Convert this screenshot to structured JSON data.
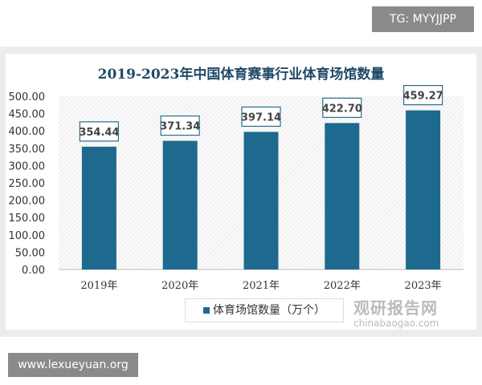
{
  "overlay": {
    "tg_label": "TG: MYYJJPP",
    "site_label": "www.lexueyuan.org",
    "watermark_cn": "观研报告网",
    "watermark_url": "chinabaogao.com"
  },
  "chart_data": {
    "type": "bar",
    "title": "2019-2023年中国体育赛事行业体育场馆数量",
    "categories": [
      "2019年",
      "2020年",
      "2021年",
      "2022年",
      "2023年"
    ],
    "series": [
      {
        "name": "体育场馆数量（万个）",
        "values": [
          354.44,
          371.34,
          397.14,
          422.7,
          459.27
        ]
      }
    ],
    "data_labels": [
      "354.44",
      "371.34",
      "397.14",
      "422.70",
      "459.27"
    ],
    "ylim": [
      0,
      500
    ],
    "yticks": [
      "0.00",
      "50.00",
      "100.00",
      "150.00",
      "200.00",
      "250.00",
      "300.00",
      "350.00",
      "400.00",
      "450.00",
      "500.00"
    ],
    "grid": false,
    "legend": "bottom",
    "bar_color": "#1e6a8e",
    "title_color": "#1f4a66"
  }
}
